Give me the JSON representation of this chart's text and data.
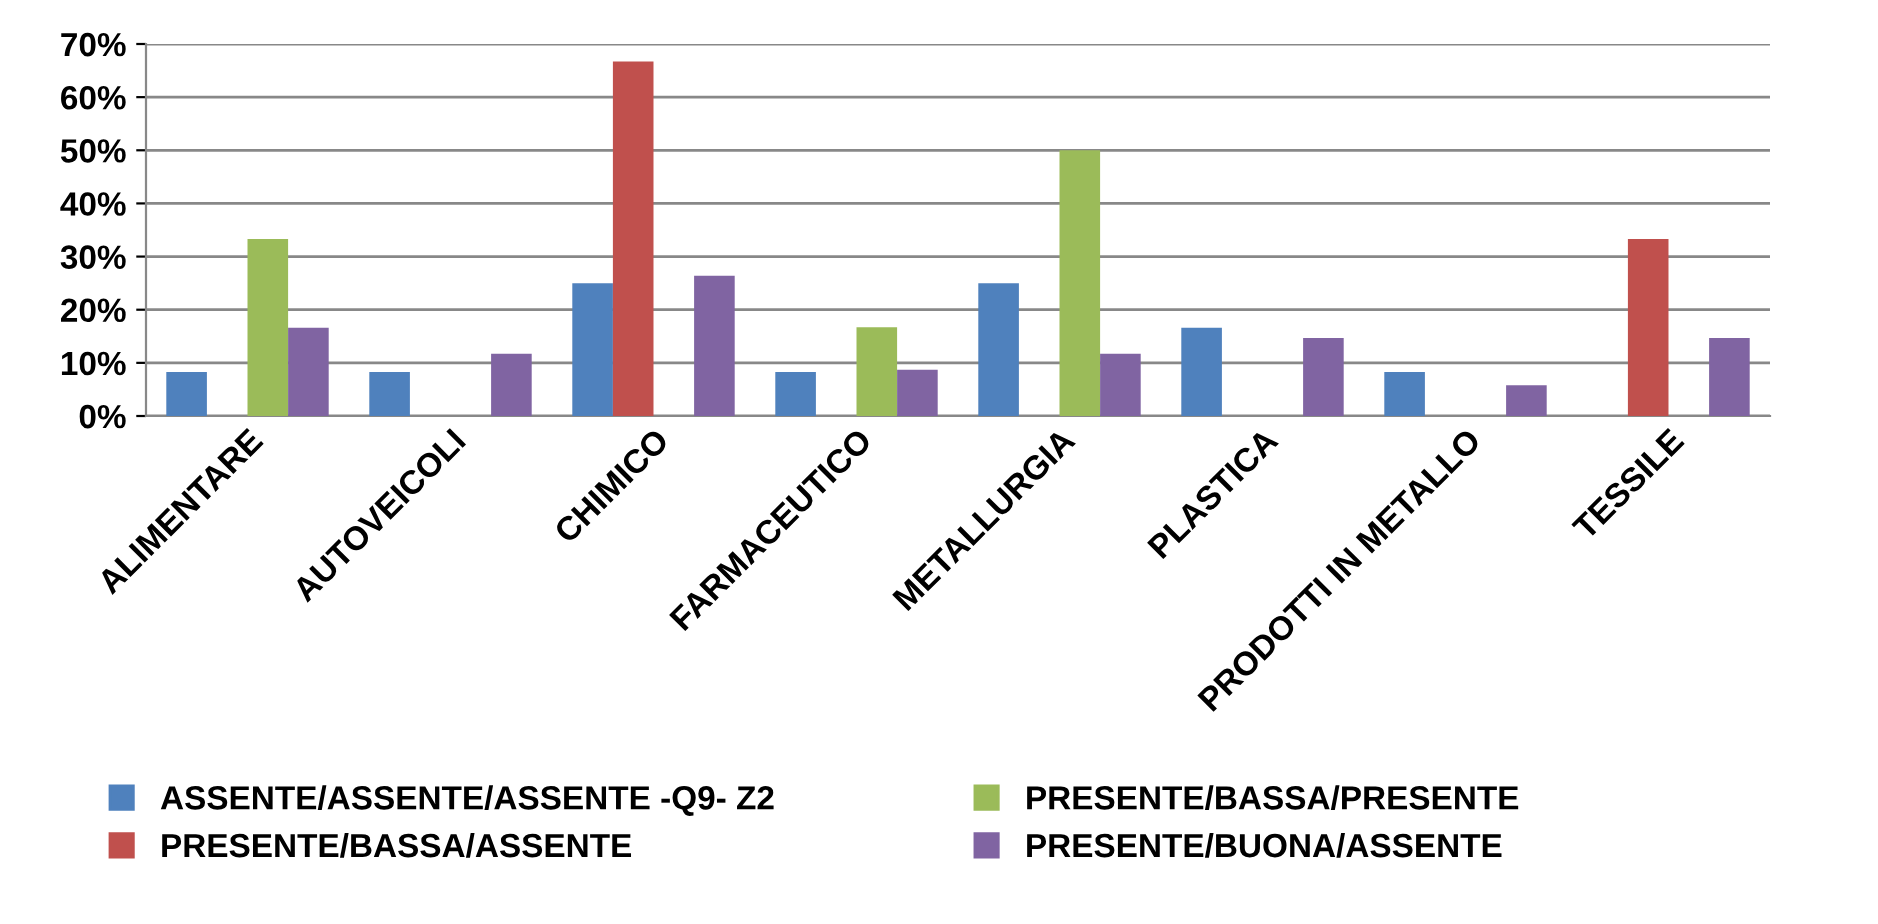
{
  "chart_data": {
    "type": "bar",
    "categories": [
      "ALIMENTARE",
      "AUTOVEICOLI",
      "CHIMICO",
      "FARMACEUTICO",
      "METALLURGIA",
      "PLASTICA",
      "PRODOTTI IN METALLO",
      "TESSILE"
    ],
    "series": [
      {
        "name": "ASSENTE/ASSENTE/ASSENTE -Q9- Z2",
        "color": "#4f81bd",
        "values": [
          8.3,
          8.3,
          25,
          8.3,
          25,
          16.6,
          8.3,
          null
        ]
      },
      {
        "name": "PRESENTE/BASSA/ASSENTE",
        "color": "#c0504d",
        "values": [
          null,
          null,
          66.7,
          null,
          null,
          null,
          null,
          33.3
        ]
      },
      {
        "name": "PRESENTE/BASSA/PRESENTE",
        "color": "#9bbb59",
        "values": [
          33.3,
          null,
          null,
          16.7,
          50,
          null,
          null,
          null
        ]
      },
      {
        "name": "PRESENTE/BUONA/ASSENTE",
        "color": "#8064a2",
        "values": [
          16.6,
          11.7,
          26.4,
          8.7,
          11.7,
          14.7,
          5.8,
          14.7
        ]
      }
    ],
    "ylim": [
      0,
      70
    ],
    "yticks": [
      {
        "value": 0,
        "label": "0%"
      },
      {
        "value": 10,
        "label": "10%"
      },
      {
        "value": 20,
        "label": "20%"
      },
      {
        "value": 30,
        "label": "30%"
      },
      {
        "value": 40,
        "label": "40%"
      },
      {
        "value": 50,
        "label": "50%"
      },
      {
        "value": 60,
        "label": "60%"
      },
      {
        "value": 70,
        "label": "70%"
      }
    ],
    "grid": "y",
    "legend": "bottom"
  }
}
